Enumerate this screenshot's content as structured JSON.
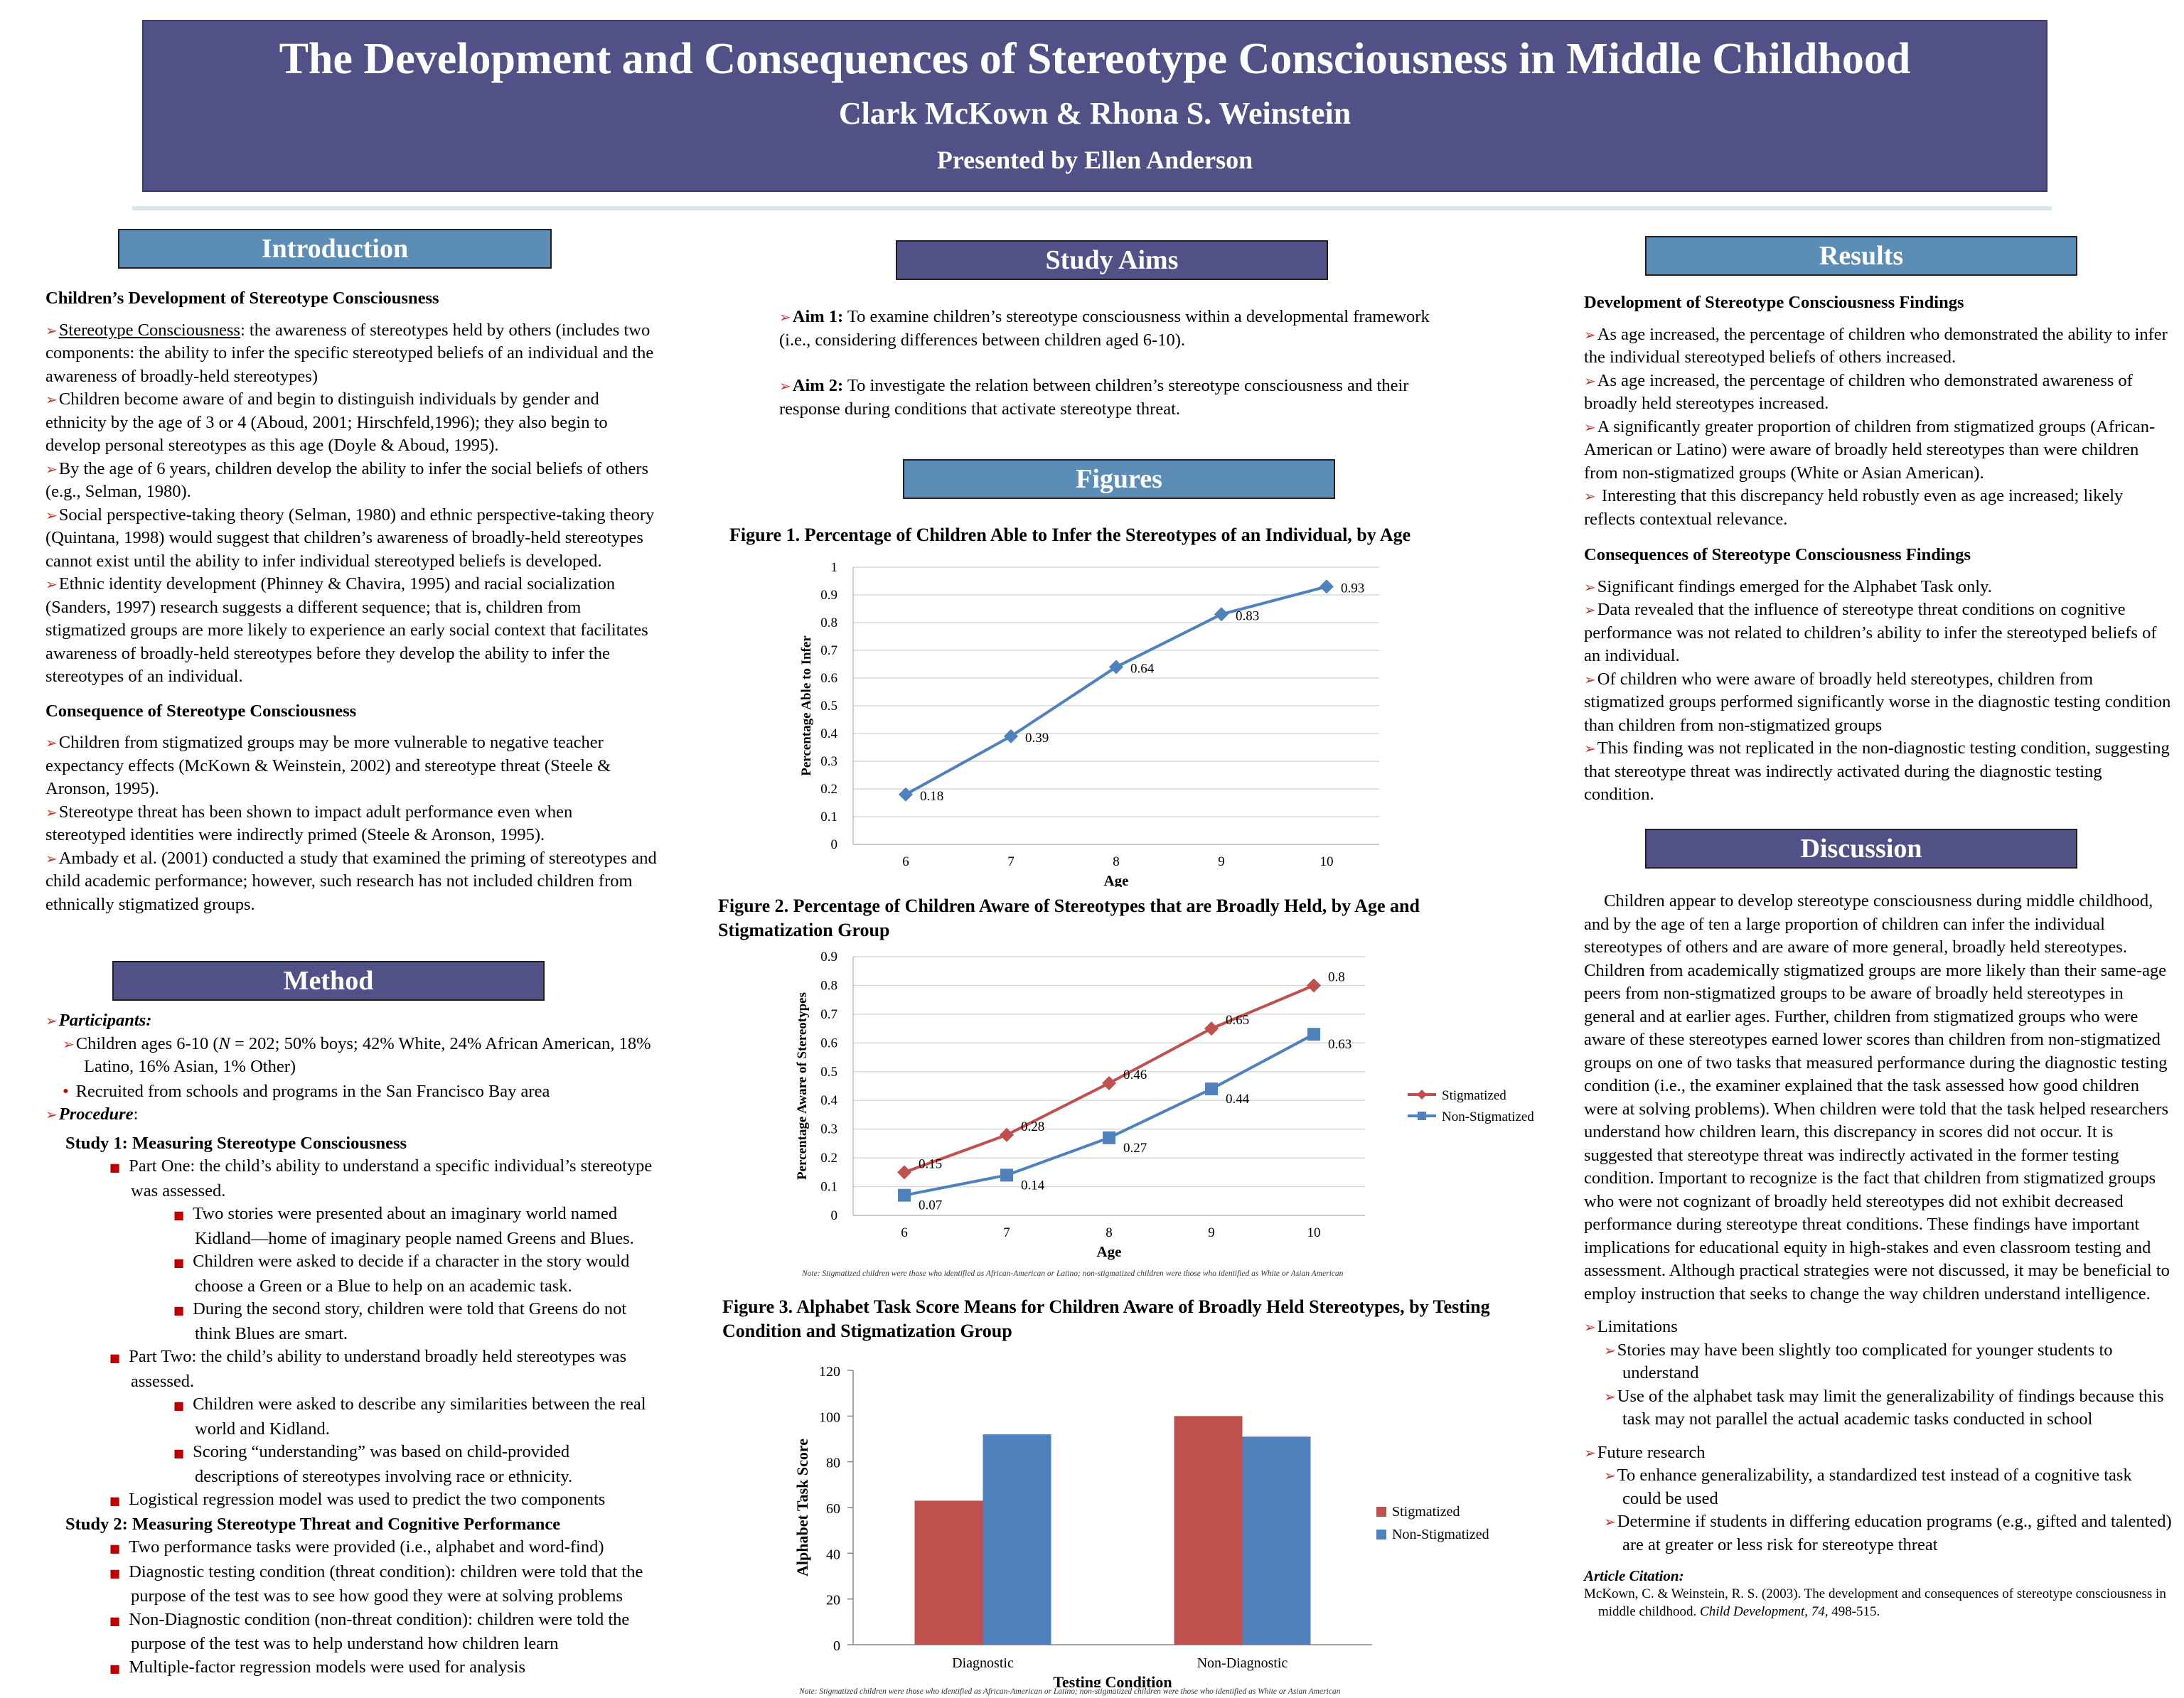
{
  "header": {
    "title": "The Development and Consequences of Stereotype Consciousness in Middle Childhood",
    "authors": "Clark McKown & Rhona S. Weinstein",
    "presenter": "Presented by Ellen Anderson"
  },
  "sections": {
    "introduction": "Introduction",
    "study_aims": "Study Aims",
    "figures": "Figures",
    "method": "Method",
    "results": "Results",
    "discussion": "Discussion"
  },
  "introduction": {
    "sub1": "Children’s Development of Stereotype Consciousness",
    "b1_term": "Stereotype Consciousness",
    "b1_rest": ": the awareness of stereotypes held by others (includes two components: the ability to infer the specific stereotyped beliefs of an individual and the awareness of broadly-held stereotypes)",
    "b2": "Children become aware of and begin to distinguish individuals by gender and ethnicity by the age of 3 or 4 (Aboud, 2001; Hirschfeld,1996); they also begin to develop personal stereotypes as this age (Doyle & Aboud, 1995).",
    "b3": "By the age of 6 years, children develop the ability to infer the social beliefs of others (e.g., Selman, 1980).",
    "b4": "Social perspective-taking theory (Selman, 1980) and ethnic perspective-taking theory (Quintana, 1998) would suggest that children’s awareness of broadly-held stereotypes cannot exist until the ability to infer individual stereotyped beliefs is developed.",
    "b5": "Ethnic identity development (Phinney & Chavira, 1995) and racial socialization (Sanders, 1997) research suggests a different sequence; that is, children from stigmatized groups are more likely to experience an early social context that facilitates awareness of broadly-held stereotypes before they develop the ability to infer the stereotypes of an individual.",
    "sub2": "Consequence of Stereotype Consciousness",
    "c1": "Children from stigmatized groups may be more vulnerable to negative teacher expectancy effects (McKown & Weinstein, 2002) and stereotype threat (Steele & Aronson, 1995).",
    "c2": "Stereotype threat has been shown to impact adult performance even when stereotyped identities were indirectly primed (Steele & Aronson, 1995).",
    "c3": "Ambady et al. (2001) conducted a study that examined the priming of stereotypes and child academic performance; however, such research has not included children from ethnically stigmatized groups."
  },
  "method": {
    "participants_label": "Participants:",
    "p1_a": "Children ages 6-10 (",
    "p1_n": "N",
    "p1_b": " = 202; 50% boys; 42% White, 24% African American, 18% Latino, 16% Asian, 1% Other)",
    "p2": "Recruited from schools and programs in the San Francisco Bay area",
    "procedure_label": "Procedure",
    "procedure_colon": ":",
    "study1": "Study 1: Measuring Stereotype Consciousness",
    "s1_part1": "Part One: the child’s ability to understand a specific individual’s stereotype was assessed.",
    "s1_p1_a": "Two stories were presented about an imaginary world named Kidland—home of imaginary people named Greens and Blues.",
    "s1_p1_b": "Children were asked to decide if a character in the story would choose a Green or a Blue to help on an academic task.",
    "s1_p1_c": "During the second story, children were told that Greens do not think Blues are smart.",
    "s1_part2": "Part Two: the child’s ability to understand broadly held stereotypes was assessed.",
    "s1_p2_a": "Children were asked to describe any similarities between the real world and Kidland.",
    "s1_p2_b": "Scoring “understanding” was based on  child-provided descriptions of stereotypes involving race or ethnicity.",
    "s1_model": "Logistical regression model was used to predict the two components",
    "study2": "Study 2: Measuring Stereotype Threat and Cognitive Performance",
    "s2_a": "Two performance tasks were provided (i.e., alphabet and word-find)",
    "s2_b": "Diagnostic testing condition (threat condition): children were told that the purpose of the test was to see how good they were at solving problems",
    "s2_c": "Non-Diagnostic condition (non-threat condition): children were told the purpose of the test was to help understand how children learn",
    "s2_d": "Multiple-factor regression models were used for analysis"
  },
  "aims": {
    "aim1_label": "Aim 1:",
    "aim1_text": " To examine children’s stereotype consciousness within a developmental framework (i.e., considering differences between children aged 6-10).",
    "aim2_label": "Aim 2:",
    "aim2_text": " To investigate the relation between children’s stereotype consciousness and their response during conditions that activate stereotype threat."
  },
  "figures": {
    "fig1_caption": "Figure 1. Percentage of Children Able to Infer the Stereotypes of an Individual, by Age",
    "fig2_caption": "Figure 2. Percentage of Children Aware of Stereotypes that are Broadly Held, by Age and Stigmatization Group",
    "fig3_caption": "Figure 3. Alphabet Task Score Means for Children Aware of Broadly Held Stereotypes, by Testing Condition and Stigmatization Group",
    "note": "Note: Stigmatized children were those who identified as African-American or Latino; non-stigmatized children were those who identified as White or Asian American"
  },
  "chart_data": [
    {
      "type": "line",
      "x": [
        6,
        7,
        8,
        9,
        10
      ],
      "series": [
        {
          "values": [
            0.18,
            0.39,
            0.64,
            0.83,
            0.93
          ]
        }
      ],
      "xlabel": "Age",
      "ylabel": "Percentage Able to Infer",
      "ylim": [
        0,
        1
      ],
      "yticks": [
        "0",
        "0.1",
        "0.2",
        "0.3",
        "0.4",
        "0.5",
        "0.6",
        "0.7",
        "0.8",
        "0.9",
        "1"
      ],
      "grid": true,
      "colors": [
        "#4f81bd"
      ]
    },
    {
      "type": "line",
      "x": [
        6,
        7,
        8,
        9,
        10
      ],
      "series": [
        {
          "name": "Stigmatized",
          "values": [
            0.15,
            0.28,
            0.46,
            0.65,
            0.8
          ]
        },
        {
          "name": "Non-Stigmatized",
          "values": [
            0.07,
            0.14,
            0.27,
            0.44,
            0.63
          ]
        }
      ],
      "xlabel": "Age",
      "ylabel": "Percentage Aware of Stereotypes",
      "ylim": [
        0,
        0.9
      ],
      "yticks": [
        "0",
        "0.1",
        "0.2",
        "0.3",
        "0.4",
        "0.5",
        "0.6",
        "0.7",
        "0.8",
        "0.9"
      ],
      "grid": true,
      "legend": "right",
      "colors": [
        "#c0504d",
        "#4f81bd"
      ]
    },
    {
      "type": "bar",
      "categories": [
        "Diagnostic",
        "Non-Diagnostic"
      ],
      "series": [
        {
          "name": "Stigmatized",
          "values": [
            63,
            100
          ]
        },
        {
          "name": "Non-Stigmatized",
          "values": [
            92,
            91
          ]
        }
      ],
      "xlabel": "Testing Condition",
      "ylabel": "Alphabet Task Score",
      "ylim": [
        0,
        120
      ],
      "yticks": [
        "0",
        "20",
        "40",
        "60",
        "80",
        "100",
        "120"
      ],
      "grid": false,
      "legend": "right",
      "colors": [
        "#c0504d",
        "#4f81bd"
      ]
    }
  ],
  "results": {
    "sub1": "Development of Stereotype Consciousness Findings",
    "r1": "As age increased, the percentage of children who demonstrated the ability to infer the individual stereotyped beliefs of others increased.",
    "r2": "As age increased, the percentage of children who demonstrated awareness of broadly held stereotypes increased.",
    "r3": "A significantly greater proportion of children from stigmatized groups (African-American or Latino) were aware of broadly held stereotypes than were children from non-stigmatized groups (White or Asian American).",
    "r4": " Interesting that this discrepancy held robustly even as age increased; likely reflects contextual relevance.",
    "sub2": "Consequences of Stereotype Consciousness Findings",
    "q1": "Significant findings emerged for the Alphabet Task only.",
    "q2": "Data revealed that the influence of stereotype threat conditions on cognitive performance was not related to children’s ability to infer the stereotyped beliefs of an individual.",
    "q3": "Of children who were aware of broadly held stereotypes, children from stigmatized groups performed significantly worse in the diagnostic testing condition than children from non-stigmatized groups",
    "q4": "This finding was not replicated in the non-diagnostic testing condition, suggesting that stereotype threat was indirectly activated during the diagnostic testing condition."
  },
  "discussion": {
    "para": "Children appear to develop stereotype consciousness during middle childhood, and by the age of ten a large proportion of children can infer the individual stereotypes of others and are aware of more general, broadly held stereotypes. Children from academically stigmatized groups are more likely than their same-age peers from non-stigmatized groups to be aware of broadly held stereotypes in general and at earlier ages. Further, children from stigmatized groups who were aware of these stereotypes earned lower scores than children from non-stigmatized groups on one of two tasks that measured performance during the diagnostic testing condition (i.e., the examiner explained that the task assessed how good children were at solving problems). When children were told that the task helped researchers understand how children learn, this discrepancy in scores did not occur. It is suggested that stereotype threat was indirectly activated in the former testing condition. Important to recognize is the fact that children from stigmatized groups who were not cognizant of broadly held stereotypes did not exhibit decreased performance during stereotype threat conditions. These findings have important implications for educational equity in high-stakes and even classroom testing and assessment. Although practical strategies were not discussed, it may be beneficial to employ instruction that seeks to change the way children understand intelligence.",
    "limitations": "Limitations",
    "lim1": "Stories may have been slightly too complicated for younger students to understand",
    "lim2": "Use of the alphabet task may limit the generalizability of findings because this task may not parallel the actual academic tasks conducted in school",
    "future": "Future research",
    "fut1": "To enhance generalizability, a standardized test instead of a cognitive task could be used",
    "fut2": "Determine if students in differing education programs (e.g., gifted and talented) are at greater or less risk for stereotype threat",
    "citation_label": "Article Citation:",
    "citation_a": "McKown, C. & Weinstein, R. S. (2003). The development and consequences of stereotype consciousness in middle childhood. ",
    "citation_journal": "Child Development, 74,",
    "citation_b": " 498-515."
  }
}
